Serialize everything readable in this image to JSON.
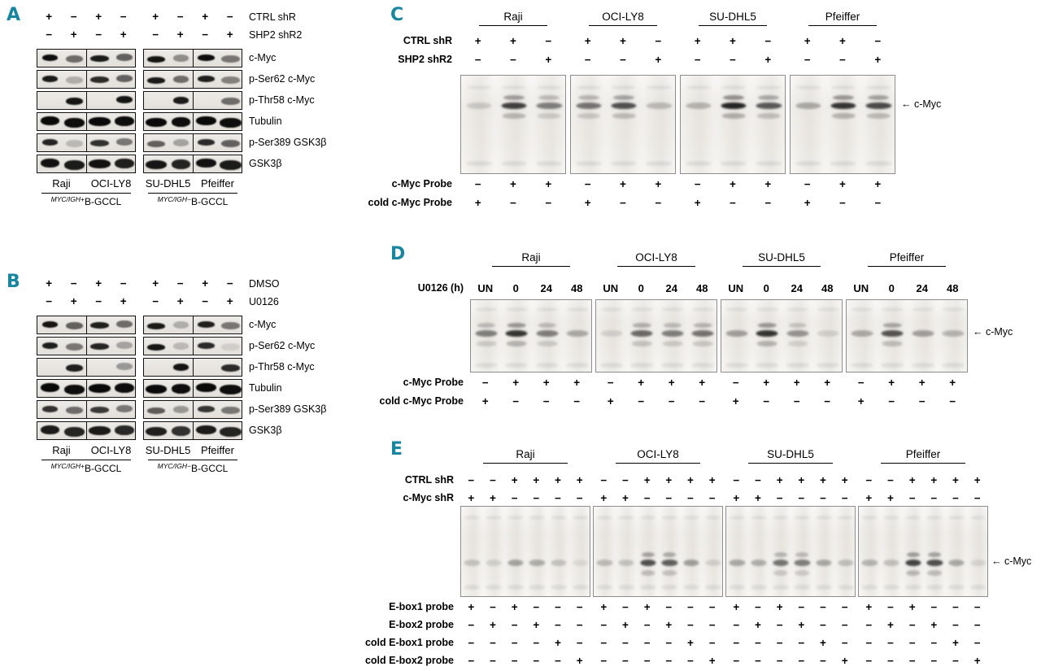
{
  "accent_color": "#17869e",
  "panels": {
    "A": {
      "label": "A",
      "condition_rows": [
        {
          "label": "CTRL shR",
          "signs": [
            "+",
            "−",
            "+",
            "−",
            "+",
            "−",
            "+",
            "−"
          ]
        },
        {
          "label": "SHP2 shR2",
          "signs": [
            "−",
            "+",
            "−",
            "+",
            "−",
            "+",
            "−",
            "+"
          ]
        }
      ],
      "blot_rows": [
        {
          "label": "c-Myc",
          "thick": false,
          "bands": [
            0.98,
            0.55,
            0.92,
            0.6,
            0.95,
            0.4,
            0.98,
            0.5
          ]
        },
        {
          "label": "p-Ser62 c-Myc",
          "thick": false,
          "bands": [
            0.92,
            0.25,
            0.85,
            0.6,
            0.92,
            0.55,
            0.9,
            0.45
          ]
        },
        {
          "label": "p-Thr58 c-Myc",
          "thick": false,
          "bands": [
            0,
            0.95,
            0,
            0.95,
            0,
            0.92,
            0,
            0.55
          ]
        },
        {
          "label": "Tubulin",
          "thick": true,
          "bands": [
            1,
            0.98,
            1,
            0.98,
            1,
            0.98,
            1,
            0.98
          ]
        },
        {
          "label": "p-Ser389 GSK3β",
          "thick": false,
          "bands": [
            0.88,
            0.2,
            0.82,
            0.5,
            0.6,
            0.3,
            0.85,
            0.6
          ]
        },
        {
          "label": "GSK3β",
          "thick": true,
          "bands": [
            0.96,
            0.92,
            0.96,
            0.9,
            0.94,
            0.88,
            0.96,
            0.92
          ]
        }
      ],
      "cell_lines": [
        "Raji",
        "OCI-LY8",
        "SU-DHL5",
        "Pfeiffer"
      ],
      "group_labels": [
        {
          "sup": "MYC/IGH+",
          "main": "B-GCCL"
        },
        {
          "sup": "MYC/IGH−",
          "main": "B-GCCL"
        }
      ]
    },
    "B": {
      "label": "B",
      "condition_rows": [
        {
          "label": "DMSO",
          "signs": [
            "+",
            "−",
            "+",
            "−",
            "+",
            "−",
            "+",
            "−"
          ]
        },
        {
          "label": "U0126",
          "signs": [
            "−",
            "+",
            "−",
            "+",
            "−",
            "+",
            "−",
            "+"
          ]
        }
      ],
      "blot_rows": [
        {
          "label": "c-Myc",
          "thick": false,
          "bands": [
            0.95,
            0.6,
            0.9,
            0.55,
            0.92,
            0.25,
            0.9,
            0.5
          ]
        },
        {
          "label": "p-Ser62 c-Myc",
          "thick": false,
          "bands": [
            0.9,
            0.5,
            0.88,
            0.3,
            0.95,
            0.2,
            0.85,
            0.1
          ]
        },
        {
          "label": "p-Thr58 c-Myc",
          "thick": false,
          "bands": [
            0,
            0.9,
            0,
            0.35,
            0,
            0.95,
            0,
            0.85
          ]
        },
        {
          "label": "Tubulin",
          "thick": true,
          "bands": [
            1,
            0.98,
            1,
            0.98,
            1,
            0.98,
            1,
            0.98
          ]
        },
        {
          "label": "p-Ser389 GSK3β",
          "thick": false,
          "bands": [
            0.82,
            0.55,
            0.78,
            0.5,
            0.62,
            0.35,
            0.8,
            0.5
          ]
        },
        {
          "label": "GSK3β",
          "thick": true,
          "bands": [
            0.92,
            0.88,
            0.92,
            0.86,
            0.9,
            0.82,
            0.92,
            0.88
          ]
        }
      ],
      "cell_lines": [
        "Raji",
        "OCI-LY8",
        "SU-DHL5",
        "Pfeiffer"
      ],
      "group_labels": [
        {
          "sup": "MYC/IGH+",
          "main": "B-GCCL"
        },
        {
          "sup": "MYC/IGH−",
          "main": "B-GCCL"
        }
      ]
    },
    "C": {
      "label": "C",
      "cell_lines": [
        "Raji",
        "OCI-LY8",
        "SU-DHL5",
        "Pfeiffer"
      ],
      "condition_rows": [
        {
          "label": "CTRL shR",
          "signs": [
            "+",
            "+",
            "−"
          ]
        },
        {
          "label": "SHP2 shR2",
          "signs": [
            "−",
            "−",
            "+"
          ]
        }
      ],
      "probe_rows": [
        {
          "label": "c-Myc Probe",
          "signs": [
            "−",
            "+",
            "+"
          ]
        },
        {
          "label": "cold c-Myc Probe",
          "signs": [
            "+",
            "−",
            "−"
          ]
        }
      ],
      "arrow": {
        "icon": "←",
        "text": "c-Myc"
      },
      "band_intensities": [
        [
          0.15,
          0.8,
          0.5
        ],
        [
          0.55,
          0.72,
          0.22
        ],
        [
          0.25,
          0.92,
          0.68
        ],
        [
          0.3,
          0.85,
          0.75
        ]
      ]
    },
    "D": {
      "label": "D",
      "cell_lines": [
        "Raji",
        "OCI-LY8",
        "SU-DHL5",
        "Pfeiffer"
      ],
      "timepoints": {
        "label": "U0126 (h)",
        "values": [
          "UN",
          "0",
          "24",
          "48"
        ]
      },
      "probe_rows": [
        {
          "label": "c-Myc Probe",
          "signs": [
            "−",
            "+",
            "+",
            "+"
          ]
        },
        {
          "label": "cold c-Myc Probe",
          "signs": [
            "+",
            "−",
            "−",
            "−"
          ]
        }
      ],
      "arrow": {
        "icon": "←",
        "text": "c-Myc"
      },
      "band_intensities": [
        [
          0.5,
          0.85,
          0.5,
          0.3
        ],
        [
          0.12,
          0.6,
          0.5,
          0.55
        ],
        [
          0.35,
          0.85,
          0.4,
          0.12
        ],
        [
          0.3,
          0.7,
          0.35,
          0.25
        ]
      ]
    },
    "E": {
      "label": "E",
      "cell_lines": [
        "Raji",
        "OCI-LY8",
        "SU-DHL5",
        "Pfeiffer"
      ],
      "condition_rows": [
        {
          "label": "CTRL shR",
          "signs": [
            "−",
            "−",
            "+",
            "+",
            "+",
            "+"
          ]
        },
        {
          "label": "c-Myc shR",
          "signs": [
            "+",
            "+",
            "−",
            "−",
            "−",
            "−"
          ]
        }
      ],
      "probe_rows": [
        {
          "label": "E-box1 probe",
          "signs": [
            "+",
            "−",
            "+",
            "−",
            "−",
            "−"
          ]
        },
        {
          "label": "E-box2 probe",
          "signs": [
            "−",
            "+",
            "−",
            "+",
            "−",
            "−"
          ]
        },
        {
          "label": "cold E-box1 probe",
          "signs": [
            "−",
            "−",
            "−",
            "−",
            "+",
            "−"
          ]
        },
        {
          "label": "cold E-box2 probe",
          "signs": [
            "−",
            "−",
            "−",
            "−",
            "−",
            "+"
          ]
        }
      ],
      "arrow": {
        "icon": "←",
        "text": "c-Myc"
      },
      "band_intensities": [
        [
          0.18,
          0.12,
          0.32,
          0.28,
          0.18,
          0.08
        ],
        [
          0.22,
          0.18,
          0.72,
          0.65,
          0.35,
          0.12
        ],
        [
          0.3,
          0.28,
          0.55,
          0.5,
          0.3,
          0.2
        ],
        [
          0.25,
          0.2,
          0.78,
          0.72,
          0.3,
          0.1
        ]
      ]
    }
  }
}
